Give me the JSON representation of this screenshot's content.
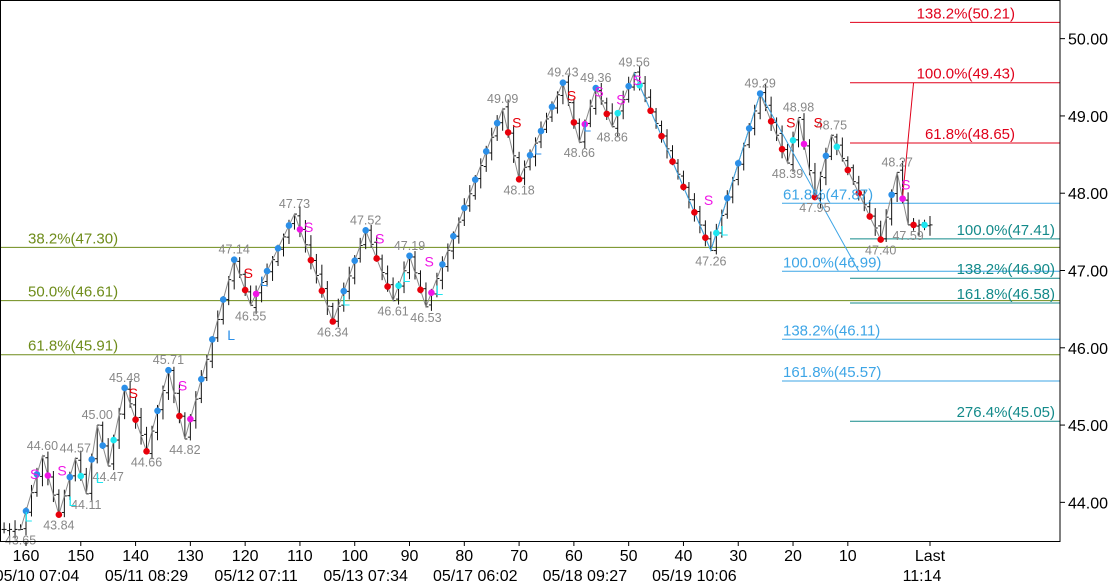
{
  "chart_data": {
    "type": "candlestick",
    "title": "",
    "xlabel": "",
    "ylabel": "",
    "ylim": [
      43.5,
      50.5
    ],
    "xlim": [
      164,
      -7
    ],
    "y_ticks": [
      {
        "value": 44.0,
        "label": "44.00"
      },
      {
        "value": 45.0,
        "label": "45.00"
      },
      {
        "value": 46.0,
        "label": "46.00"
      },
      {
        "value": 47.0,
        "label": "47.00"
      },
      {
        "value": 48.0,
        "label": "48.00"
      },
      {
        "value": 49.0,
        "label": "49.00"
      },
      {
        "value": 50.0,
        "label": "50.00"
      }
    ],
    "x_ticks": [
      {
        "value": 160,
        "label": "160"
      },
      {
        "value": 150,
        "label": "150"
      },
      {
        "value": 140,
        "label": "140"
      },
      {
        "value": 130,
        "label": "130"
      },
      {
        "value": 120,
        "label": "120"
      },
      {
        "value": 110,
        "label": "110"
      },
      {
        "value": 100,
        "label": "100"
      },
      {
        "value": 90,
        "label": "90"
      },
      {
        "value": 80,
        "label": "80"
      },
      {
        "value": 70,
        "label": "70"
      },
      {
        "value": 60,
        "label": "60"
      },
      {
        "value": 50,
        "label": "50"
      },
      {
        "value": 40,
        "label": "40"
      },
      {
        "value": 30,
        "label": "30"
      },
      {
        "value": 20,
        "label": "20"
      },
      {
        "value": 10,
        "label": "10"
      },
      {
        "value": -5,
        "label": "Last"
      }
    ],
    "date_labels": [
      {
        "value": 158,
        "label": "05/10 07:04"
      },
      {
        "value": 138,
        "label": "05/11 08:29"
      },
      {
        "value": 118,
        "label": "05/12 07:11"
      },
      {
        "value": 98,
        "label": "05/13 07:34"
      },
      {
        "value": 78,
        "label": "05/17 06:02"
      },
      {
        "value": 58,
        "label": "05/18 09:27"
      },
      {
        "value": 38,
        "label": "05/19 10:06"
      },
      {
        "value": -5,
        "label": "11:14"
      }
    ],
    "zigzag": [
      {
        "x": 161,
        "y": 43.65
      },
      {
        "x": 157,
        "y": 44.6
      },
      {
        "x": 154,
        "y": 43.84
      },
      {
        "x": 151,
        "y": 44.57
      },
      {
        "x": 149,
        "y": 44.11
      },
      {
        "x": 147,
        "y": 45.0
      },
      {
        "x": 145,
        "y": 44.47
      },
      {
        "x": 142,
        "y": 45.48
      },
      {
        "x": 138,
        "y": 44.66
      },
      {
        "x": 134,
        "y": 45.71
      },
      {
        "x": 131,
        "y": 44.82
      },
      {
        "x": 122,
        "y": 47.14
      },
      {
        "x": 119,
        "y": 46.55
      },
      {
        "x": 111,
        "y": 47.73
      },
      {
        "x": 104,
        "y": 46.34
      },
      {
        "x": 98,
        "y": 47.52
      },
      {
        "x": 93,
        "y": 46.61
      },
      {
        "x": 90,
        "y": 47.19
      },
      {
        "x": 87,
        "y": 46.53
      },
      {
        "x": 73,
        "y": 49.09
      },
      {
        "x": 70,
        "y": 48.18
      },
      {
        "x": 62,
        "y": 49.43
      },
      {
        "x": 59,
        "y": 48.66
      },
      {
        "x": 56,
        "y": 49.36
      },
      {
        "x": 53,
        "y": 48.86
      },
      {
        "x": 49,
        "y": 49.56
      },
      {
        "x": 35,
        "y": 47.26
      },
      {
        "x": 26,
        "y": 49.29
      },
      {
        "x": 21,
        "y": 48.39
      },
      {
        "x": 19,
        "y": 48.98
      },
      {
        "x": 16,
        "y": 47.95
      },
      {
        "x": 13,
        "y": 48.75
      },
      {
        "x": 4,
        "y": 47.4
      },
      {
        "x": 1,
        "y": 48.27
      },
      {
        "x": -1,
        "y": 47.59
      }
    ],
    "swing_labels": [
      {
        "x": 161,
        "y": 43.65,
        "text": "43.65",
        "pos": "below"
      },
      {
        "x": 157,
        "y": 44.6,
        "text": "44.60",
        "pos": "above"
      },
      {
        "x": 154,
        "y": 43.84,
        "text": "43.84",
        "pos": "below"
      },
      {
        "x": 151,
        "y": 44.57,
        "text": "44.57",
        "pos": "above"
      },
      {
        "x": 149,
        "y": 44.11,
        "text": "44.11",
        "pos": "below"
      },
      {
        "x": 147,
        "y": 45.0,
        "text": "45.00",
        "pos": "above"
      },
      {
        "x": 145,
        "y": 44.47,
        "text": "44.47",
        "pos": "below"
      },
      {
        "x": 142,
        "y": 45.48,
        "text": "45.48",
        "pos": "above"
      },
      {
        "x": 138,
        "y": 44.66,
        "text": "44.66",
        "pos": "below"
      },
      {
        "x": 134,
        "y": 45.71,
        "text": "45.71",
        "pos": "above"
      },
      {
        "x": 131,
        "y": 44.82,
        "text": "44.82",
        "pos": "below"
      },
      {
        "x": 122,
        "y": 47.14,
        "text": "47.14",
        "pos": "above"
      },
      {
        "x": 119,
        "y": 46.55,
        "text": "46.55",
        "pos": "below"
      },
      {
        "x": 111,
        "y": 47.73,
        "text": "47.73",
        "pos": "above"
      },
      {
        "x": 104,
        "y": 46.34,
        "text": "46.34",
        "pos": "below"
      },
      {
        "x": 98,
        "y": 47.52,
        "text": "47.52",
        "pos": "above"
      },
      {
        "x": 93,
        "y": 46.61,
        "text": "46.61",
        "pos": "below"
      },
      {
        "x": 90,
        "y": 47.19,
        "text": "47.19",
        "pos": "above"
      },
      {
        "x": 87,
        "y": 46.53,
        "text": "46.53",
        "pos": "below"
      },
      {
        "x": 73,
        "y": 49.09,
        "text": "49.09",
        "pos": "above"
      },
      {
        "x": 70,
        "y": 48.18,
        "text": "48.18",
        "pos": "below"
      },
      {
        "x": 62,
        "y": 49.43,
        "text": "49.43",
        "pos": "above"
      },
      {
        "x": 59,
        "y": 48.66,
        "text": "48.66",
        "pos": "below"
      },
      {
        "x": 56,
        "y": 49.36,
        "text": "49.36",
        "pos": "above"
      },
      {
        "x": 53,
        "y": 48.86,
        "text": "48.86",
        "pos": "below"
      },
      {
        "x": 49,
        "y": 49.56,
        "text": "49.56",
        "pos": "above"
      },
      {
        "x": 35,
        "y": 47.26,
        "text": "47.26",
        "pos": "below"
      },
      {
        "x": 26,
        "y": 49.29,
        "text": "49.29",
        "pos": "above"
      },
      {
        "x": 21,
        "y": 48.39,
        "text": "48.39",
        "pos": "below"
      },
      {
        "x": 19,
        "y": 48.98,
        "text": "48.98",
        "pos": "above"
      },
      {
        "x": 16,
        "y": 47.95,
        "text": "47.95",
        "pos": "below"
      },
      {
        "x": 13,
        "y": 48.75,
        "text": "48.75",
        "pos": "above"
      },
      {
        "x": 4,
        "y": 47.4,
        "text": "47.40",
        "pos": "below"
      },
      {
        "x": 1,
        "y": 48.27,
        "text": "48.27",
        "pos": "above"
      },
      {
        "x": -1,
        "y": 47.59,
        "text": "47.59",
        "pos": "below"
      }
    ],
    "signals": [
      {
        "x": 160,
        "y": 44.3,
        "text": "S",
        "type": "magenta"
      },
      {
        "x": 161,
        "y": 43.75,
        "text": "L",
        "type": "cyan"
      },
      {
        "x": 155,
        "y": 44.35,
        "text": "S",
        "type": "magenta"
      },
      {
        "x": 153,
        "y": 43.95,
        "text": "L",
        "type": "cyan"
      },
      {
        "x": 148,
        "y": 44.25,
        "text": "L",
        "type": "cyan"
      },
      {
        "x": 142,
        "y": 45.35,
        "text": "S",
        "type": "red"
      },
      {
        "x": 133,
        "y": 45.45,
        "text": "S",
        "type": "magenta"
      },
      {
        "x": 124,
        "y": 46.1,
        "text": "L",
        "type": "blue"
      },
      {
        "x": 121,
        "y": 46.9,
        "text": "S",
        "type": "red"
      },
      {
        "x": 118,
        "y": 46.8,
        "text": "L",
        "type": "blue"
      },
      {
        "x": 110,
        "y": 47.5,
        "text": "S",
        "type": "magenta"
      },
      {
        "x": 103,
        "y": 46.55,
        "text": "L",
        "type": "cyan"
      },
      {
        "x": 97,
        "y": 47.35,
        "text": "S",
        "type": "magenta"
      },
      {
        "x": 92,
        "y": 46.85,
        "text": "L",
        "type": "cyan"
      },
      {
        "x": 88,
        "y": 47.05,
        "text": "S",
        "type": "magenta"
      },
      {
        "x": 86,
        "y": 46.68,
        "text": "L",
        "type": "cyan"
      },
      {
        "x": 72,
        "y": 48.85,
        "text": "S",
        "type": "red"
      },
      {
        "x": 68,
        "y": 48.5,
        "text": "L",
        "type": "blue"
      },
      {
        "x": 62,
        "y": 49.2,
        "text": "S",
        "type": "red"
      },
      {
        "x": 59,
        "y": 48.8,
        "text": "L",
        "type": "blue"
      },
      {
        "x": 57,
        "y": 49.25,
        "text": "S",
        "type": "magenta"
      },
      {
        "x": 53,
        "y": 49.15,
        "text": "S",
        "type": "magenta"
      },
      {
        "x": 50,
        "y": 49.4,
        "text": "S",
        "type": "magenta"
      },
      {
        "x": 37,
        "y": 47.85,
        "text": "S",
        "type": "magenta"
      },
      {
        "x": 34,
        "y": 47.45,
        "text": "L",
        "type": "cyan"
      },
      {
        "x": 22,
        "y": 48.85,
        "text": "S",
        "type": "red"
      },
      {
        "x": 17,
        "y": 48.85,
        "text": "S",
        "type": "red"
      },
      {
        "x": 1,
        "y": 48.05,
        "text": "S",
        "type": "magenta"
      }
    ],
    "fib_levels": [
      {
        "value": 47.3,
        "text": "38.2%(47.30)",
        "color": "#6e8c1a",
        "x1": 0,
        "x2": 1060,
        "label_x": 28,
        "label_anchor": "start"
      },
      {
        "value": 46.61,
        "text": "50.0%(46.61)",
        "color": "#6e8c1a",
        "x1": 0,
        "x2": 1060,
        "label_x": 28,
        "label_anchor": "start"
      },
      {
        "value": 45.91,
        "text": "61.8%(45.91)",
        "color": "#6e8c1a",
        "x1": 0,
        "x2": 1060,
        "label_x": 28,
        "label_anchor": "start"
      },
      {
        "value": 50.21,
        "text": "138.2%(50.21)",
        "color": "#e0001a",
        "x1": 850,
        "x2": 1060,
        "label_x": 1015,
        "label_anchor": "end"
      },
      {
        "value": 49.43,
        "text": "100.0%(49.43)",
        "color": "#e0001a",
        "x1": 850,
        "x2": 1060,
        "label_x": 1015,
        "label_anchor": "end"
      },
      {
        "value": 48.65,
        "text": "61.8%(48.65)",
        "color": "#e0001a",
        "x1": 850,
        "x2": 1060,
        "label_x": 1015,
        "label_anchor": "end"
      },
      {
        "value": 47.87,
        "text": "61.8%(47.87)",
        "color": "#3da5e6",
        "x1": 782,
        "x2": 1060,
        "label_x": 783,
        "label_anchor": "start"
      },
      {
        "value": 46.99,
        "text": "100.0%(46.99)",
        "color": "#3da5e6",
        "x1": 782,
        "x2": 1060,
        "label_x": 783,
        "label_anchor": "start"
      },
      {
        "value": 46.11,
        "text": "138.2%(46.11)",
        "color": "#3da5e6",
        "x1": 782,
        "x2": 1060,
        "label_x": 783,
        "label_anchor": "start"
      },
      {
        "value": 45.57,
        "text": "161.8%(45.57)",
        "color": "#3da5e6",
        "x1": 782,
        "x2": 1060,
        "label_x": 783,
        "label_anchor": "start"
      },
      {
        "value": 47.41,
        "text": "100.0%(47.41)",
        "color": "#138a8a",
        "x1": 850,
        "x2": 1060,
        "label_x": 1055,
        "label_anchor": "end"
      },
      {
        "value": 46.9,
        "text": "138.2%(46.90)",
        "color": "#138a8a",
        "x1": 850,
        "x2": 1060,
        "label_x": 1055,
        "label_anchor": "end"
      },
      {
        "value": 46.58,
        "text": "161.8%(46.58)",
        "color": "#138a8a",
        "x1": 850,
        "x2": 1060,
        "label_x": 1055,
        "label_anchor": "end"
      },
      {
        "value": 45.05,
        "text": "276.4%(45.05)",
        "color": "#138a8a",
        "x1": 850,
        "x2": 1060,
        "label_x": 1055,
        "label_anchor": "end"
      }
    ],
    "projection_lines": [
      {
        "color": "#e0001a",
        "points": [
          {
            "x": 0,
            "y": 47.95
          },
          {
            "x": -2,
            "y": 49.43
          }
        ]
      },
      {
        "color": "#3da5e6",
        "points": [
          {
            "x": 49,
            "y": 49.56
          },
          {
            "x": 35,
            "y": 47.26
          },
          {
            "x": 26,
            "y": 49.29
          },
          {
            "x": 8,
            "y": 46.99
          }
        ]
      }
    ],
    "grid": false,
    "legend": "none"
  }
}
